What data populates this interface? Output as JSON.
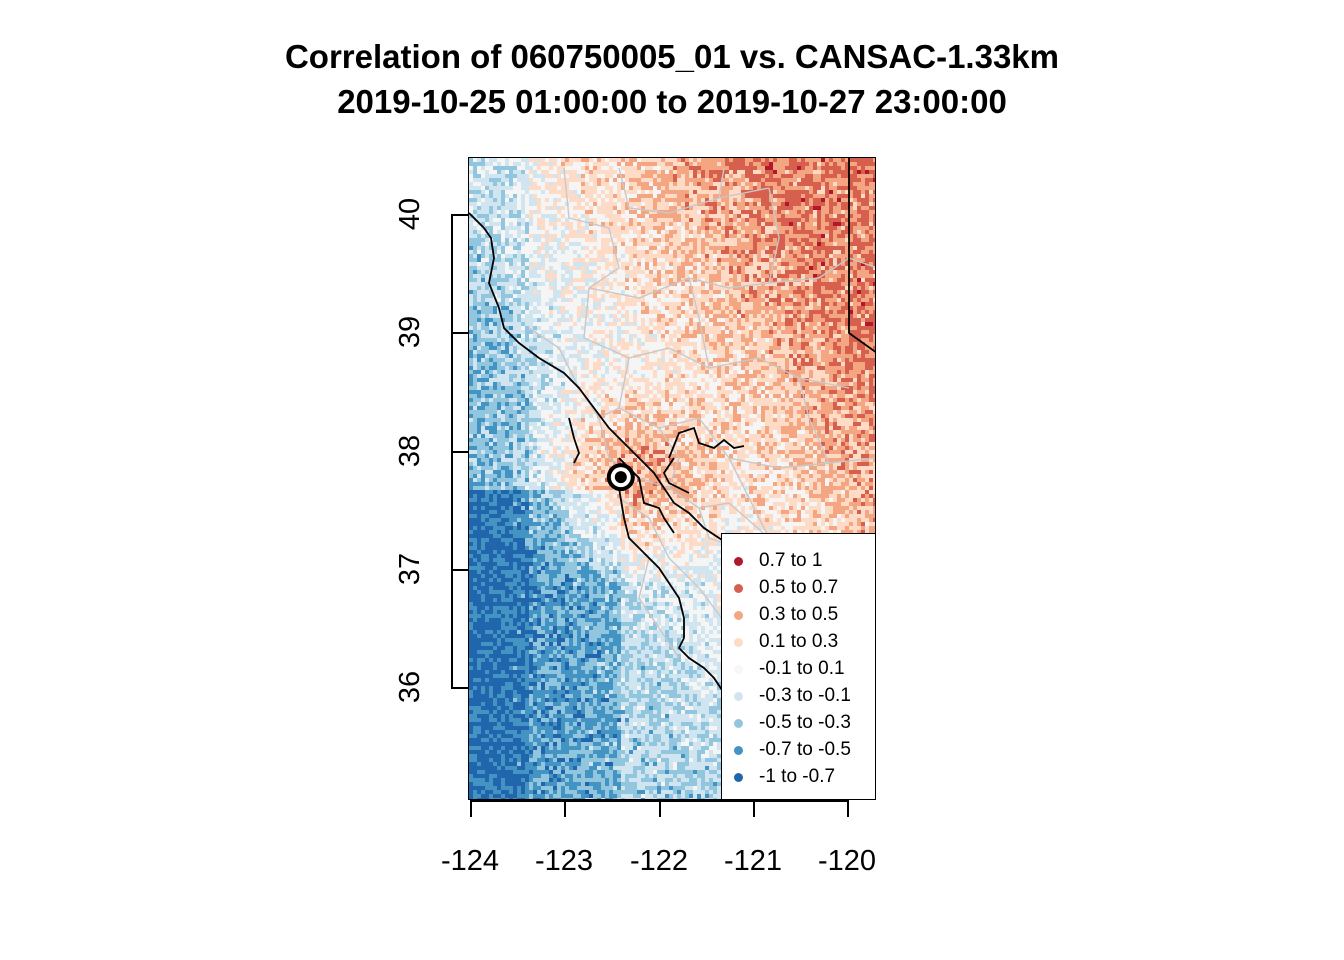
{
  "title": {
    "line1": "Correlation of 060750005_01 vs. CANSAC-1.33km",
    "line2": "2019-10-25 01:00:00 to 2019-10-27 23:00:00"
  },
  "axes": {
    "x_ticks": [
      "-124",
      "-123",
      "-122",
      "-121",
      "-120"
    ],
    "y_ticks": [
      "40",
      "39",
      "38",
      "37",
      "36"
    ],
    "xlim": [
      -124.0,
      -119.7
    ],
    "ylim": [
      35.0,
      40.5
    ]
  },
  "legend": {
    "items": [
      {
        "label": "0.7 to 1",
        "color": "#b2182b"
      },
      {
        "label": "0.5 to 0.7",
        "color": "#d6604d"
      },
      {
        "label": "0.3 to 0.5",
        "color": "#f4a582"
      },
      {
        "label": "0.1 to 0.3",
        "color": "#fddbc7"
      },
      {
        "label": "-0.1 to 0.1",
        "color": "#f7f7f7"
      },
      {
        "label": "-0.3 to -0.1",
        "color": "#d1e5f0"
      },
      {
        "label": "-0.5 to -0.3",
        "color": "#92c5de"
      },
      {
        "label": "-0.7 to -0.5",
        "color": "#4393c3"
      },
      {
        "label": "-1 to -0.7",
        "color": "#2166ac"
      }
    ]
  },
  "station": {
    "id": "060750005_01",
    "lon": -122.4,
    "lat": 37.77
  },
  "map_colors": {
    "background": "#f5f5f5",
    "county_lines": "#c8c8c8",
    "coast": "#000000"
  }
}
